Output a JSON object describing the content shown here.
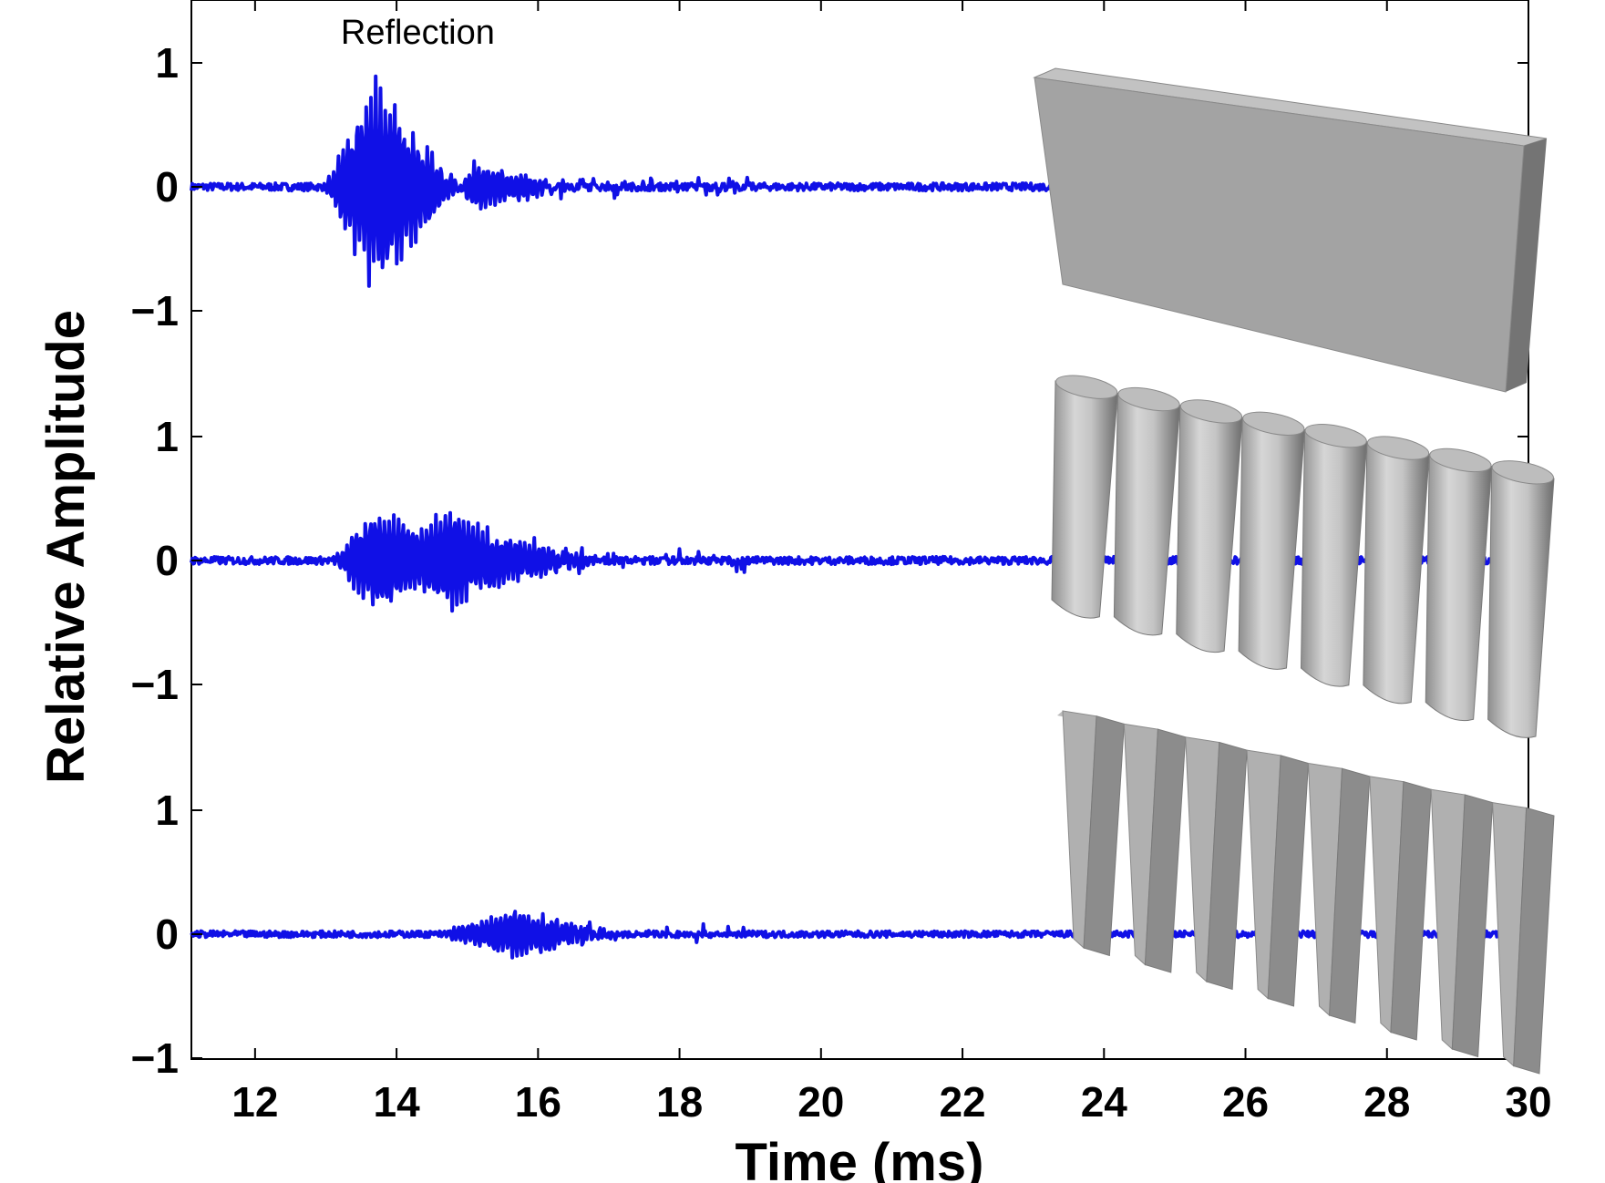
{
  "chart_data": {
    "type": "line",
    "xlabel": "Time (ms)",
    "ylabel": "Relative Amplitude",
    "xlim": [
      11.1,
      30
    ],
    "x_ticks": [
      12,
      14,
      16,
      18,
      20,
      22,
      24,
      26,
      28,
      30
    ],
    "x_tick_labels": [
      "12",
      "14",
      "16",
      "18",
      "20",
      "22",
      "24",
      "26",
      "28",
      "30"
    ],
    "y_ticks_per_panel": [
      1,
      0,
      -1
    ],
    "y_tick_labels": [
      "1",
      "0",
      "−1"
    ],
    "panel_ylim": [
      -1,
      1
    ],
    "grid": false,
    "annotations": [
      {
        "text": "Reflection",
        "x": 14.3,
        "panel": 0
      }
    ],
    "line_color": "#1010e6",
    "panels": [
      {
        "surface": "flat-slab-icon",
        "bursts": [
          {
            "start": 13.0,
            "end": 14.9,
            "peak_time": 13.65,
            "peak": 0.95
          },
          {
            "start": 14.9,
            "end": 16.6,
            "peak_time": 15.1,
            "peak": 0.2
          }
        ],
        "noise": 0.03
      },
      {
        "surface": "cylinder-array-icon",
        "bursts": [
          {
            "start": 13.1,
            "end": 15.1,
            "peak_time": 13.7,
            "peak": 0.5
          },
          {
            "start": 14.3,
            "end": 16.8,
            "peak_time": 14.8,
            "peak": 0.37
          }
        ],
        "noise": 0.03
      },
      {
        "surface": "sawtooth-array-icon",
        "bursts": [
          {
            "start": 14.6,
            "end": 17.1,
            "peak_time": 15.7,
            "peak": 0.22
          }
        ],
        "noise": 0.025
      }
    ]
  }
}
